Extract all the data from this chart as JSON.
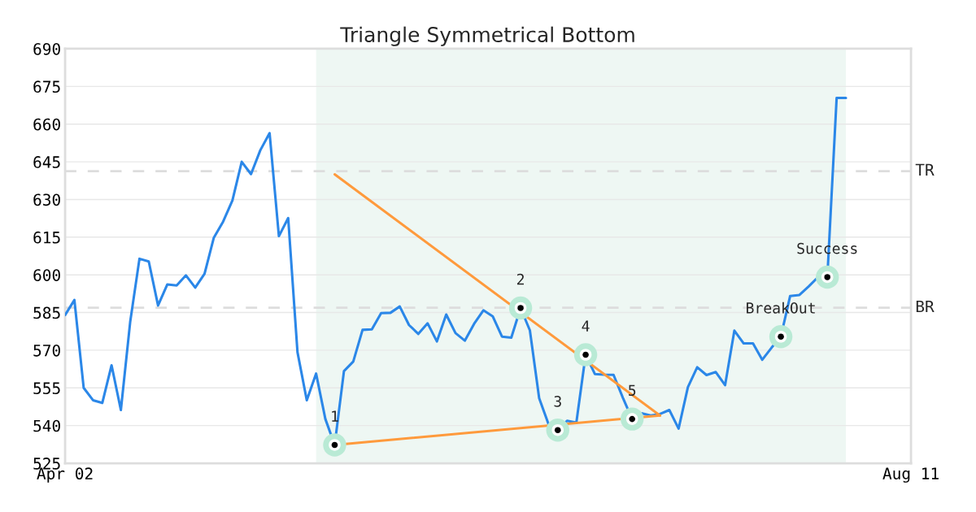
{
  "chart_data": {
    "type": "line",
    "title": "Triangle Symmetrical Bottom",
    "categories": [
      "Apr 02",
      null,
      null,
      null,
      null,
      null,
      null,
      null,
      null,
      null,
      null,
      null,
      null,
      null,
      null,
      null,
      null,
      null,
      null,
      null,
      null,
      null,
      null,
      null,
      null,
      null,
      null,
      null,
      null,
      null,
      null,
      null,
      null,
      null,
      null,
      null,
      null,
      null,
      null,
      null,
      null,
      null,
      null,
      null,
      null,
      null,
      null,
      null,
      null,
      null,
      null,
      null,
      null,
      null,
      null,
      null,
      null,
      null,
      null,
      null,
      null,
      null,
      null,
      null,
      null,
      null,
      null,
      null,
      null,
      null,
      null,
      null,
      null,
      null,
      null,
      null,
      null,
      null,
      null,
      null,
      null,
      null,
      null,
      null,
      null,
      null,
      null,
      null,
      null,
      null,
      null,
      "Aug 11"
    ],
    "ylim": [
      525,
      690
    ],
    "yticks": [
      525,
      540,
      555,
      570,
      585,
      600,
      615,
      630,
      645,
      660,
      675,
      690
    ],
    "grid": "y",
    "series": [
      {
        "color": "#2b87e8",
        "values": [
          584.0,
          590.0,
          555.0,
          550.1,
          549.0,
          564.0,
          546.2,
          581.2,
          606.4,
          605.3,
          587.8,
          596.2,
          595.8,
          599.8,
          594.9,
          600.4,
          614.8,
          621.2,
          629.6,
          645.0,
          640.1,
          649.6,
          656.4,
          615.4,
          622.6,
          569.2,
          550.1,
          560.7,
          542.6,
          532.3,
          561.7,
          565.5,
          578.1,
          578.3,
          584.8,
          584.9,
          587.4,
          580.0,
          576.5,
          580.7,
          573.5,
          584.2,
          576.8,
          573.8,
          580.5,
          585.9,
          583.5,
          575.4,
          575.0,
          586.8,
          577.9,
          550.9,
          540.6,
          538.2,
          541.9,
          541.2,
          568.2,
          560.5,
          560.3,
          560.2,
          551.1,
          542.6,
          544.9,
          544.0,
          544.6,
          546.2,
          538.8,
          555.3,
          563.2,
          560.1,
          561.3,
          556.1,
          577.8,
          572.7,
          572.7,
          566.2,
          571.0,
          575.4,
          591.6,
          592.0,
          595.4,
          599.1,
          599.1,
          670.4,
          670.4,
          null,
          null,
          null,
          null,
          null,
          null,
          null
        ]
      },
      {
        "type": "line",
        "color": "#ff9a3c",
        "values": [
          null,
          null,
          null,
          null,
          null,
          null,
          null,
          null,
          null,
          null,
          null,
          null,
          null,
          null,
          null,
          null,
          null,
          null,
          null,
          null,
          null,
          null,
          null,
          null,
          null,
          null,
          null,
          null,
          null,
          640.0,
          null,
          null,
          null,
          null,
          null,
          null,
          null,
          null,
          null,
          null,
          null,
          null,
          null,
          null,
          null,
          null,
          null,
          null,
          null,
          null,
          null,
          null,
          null,
          null,
          null,
          null,
          null,
          null,
          null,
          null,
          null,
          null,
          null,
          null,
          544.0,
          null,
          null,
          null,
          null,
          null,
          null,
          null,
          null,
          null,
          null,
          null,
          null,
          null,
          null,
          null,
          null,
          null,
          null,
          null,
          null,
          null,
          null,
          null,
          null,
          null,
          null,
          null
        ]
      },
      {
        "type": "line",
        "color": "#ff9a3c",
        "values": [
          null,
          null,
          null,
          null,
          null,
          null,
          null,
          null,
          null,
          null,
          null,
          null,
          null,
          null,
          null,
          null,
          null,
          null,
          null,
          null,
          null,
          null,
          null,
          null,
          null,
          null,
          null,
          null,
          null,
          532.3,
          null,
          null,
          null,
          null,
          null,
          null,
          null,
          null,
          null,
          null,
          null,
          null,
          null,
          null,
          null,
          null,
          null,
          null,
          null,
          null,
          null,
          null,
          null,
          null,
          null,
          null,
          null,
          null,
          null,
          null,
          null,
          null,
          null,
          null,
          544.0,
          null,
          null,
          null,
          null,
          null,
          null,
          null,
          null,
          null,
          null,
          null,
          null,
          null,
          null,
          null,
          null,
          null,
          null,
          null,
          null,
          null,
          null,
          null,
          null,
          null,
          null,
          null
        ]
      },
      {
        "type": "scatter",
        "color": "#000000",
        "values": [
          null,
          null,
          null,
          null,
          null,
          null,
          null,
          null,
          null,
          null,
          null,
          null,
          null,
          null,
          null,
          null,
          null,
          null,
          null,
          null,
          null,
          null,
          null,
          null,
          null,
          null,
          null,
          null,
          null,
          532.3,
          null,
          null,
          null,
          null,
          null,
          null,
          null,
          null,
          null,
          null,
          null,
          null,
          null,
          null,
          null,
          null,
          null,
          null,
          null,
          586.8,
          null,
          null,
          null,
          538.2,
          null,
          null,
          568.2,
          null,
          null,
          null,
          null,
          542.6,
          null,
          null,
          null,
          null,
          null,
          null,
          null,
          null,
          null,
          null,
          null,
          null,
          null,
          null,
          null,
          575.4,
          null,
          null,
          null,
          null,
          599.1,
          null,
          null,
          null,
          null,
          null,
          null,
          null,
          null,
          null
        ],
        "marker": "circle"
      }
    ],
    "ref_lines": [
      {
        "axis": "y",
        "value": 641.3,
        "label": "TR",
        "color": "#dddddd",
        "line_style": "dashed"
      },
      {
        "axis": "y",
        "value": 586.9,
        "label": "BR",
        "color": "#dddddd",
        "line_style": "dashed"
      }
    ],
    "annotations": [
      {
        "text": "1",
        "y": 532.3
      },
      {
        "text": "2",
        "y": 586.8
      },
      {
        "text": "3",
        "y": 538.2
      },
      {
        "text": "4",
        "y": 568.2
      },
      {
        "text": "5",
        "y": 542.6
      },
      {
        "text": "BreakOut",
        "y": 575.4
      },
      {
        "text": "Success",
        "y": 599.1
      }
    ]
  }
}
